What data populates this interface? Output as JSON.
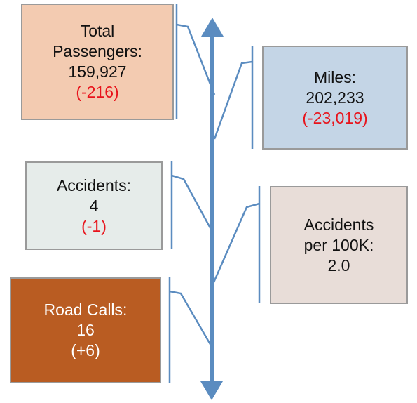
{
  "boxes": [
    {
      "lines": [
        "Total",
        "Passengers:",
        "159,927"
      ],
      "change": "(-216)"
    },
    {
      "lines": [
        "Miles:",
        "202,233"
      ],
      "change": "(-23,019)"
    },
    {
      "lines": [
        "Accidents:",
        "4"
      ],
      "change": "(-1)"
    },
    {
      "lines": [
        "Accidents",
        "per 100K:",
        "2.0"
      ]
    },
    {
      "lines": [
        "Road Calls:",
        "16"
      ],
      "change": "(+6)"
    }
  ]
}
